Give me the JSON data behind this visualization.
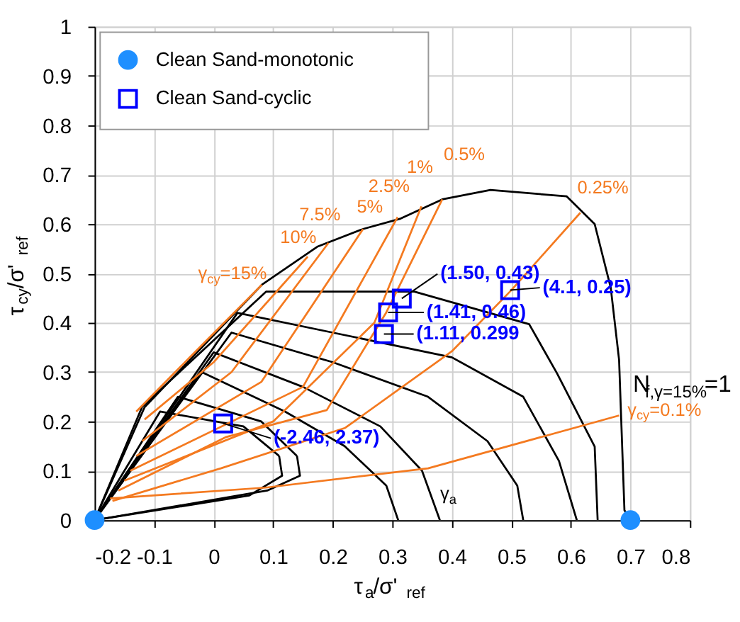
{
  "chart_data": {
    "type": "line",
    "xlabel": "τ$_{a}$/σ'$_{ref}$",
    "ylabel": "τ$_{cy}$/σ'$_{ref}$",
    "xlim": [
      -0.2,
      0.8
    ],
    "ylim": [
      0,
      1
    ],
    "xticks": [
      -0.2,
      -0.1,
      0,
      0.1,
      0.2,
      0.3,
      0.4,
      0.5,
      0.6,
      0.7,
      0.8
    ],
    "yticks": [
      0,
      0.1,
      0.2,
      0.3,
      0.4,
      0.5,
      0.6,
      0.7,
      0.8,
      0.9,
      1
    ],
    "grid": true,
    "legend": "top left",
    "series": [
      {
        "color": "#000000",
        "x": [
          -0.2,
          -0.116,
          0.081,
          0.174,
          0.251,
          0.314,
          0.384,
          0.465,
          0.593,
          0.64,
          0.667,
          0.681,
          0.69,
          0.7
        ],
        "values": [
          0,
          0.229,
          0.477,
          0.554,
          0.59,
          0.611,
          0.65,
          0.669,
          0.656,
          0.6,
          0.471,
          0.325,
          0.02,
          0
        ]
      },
      {
        "color": "#000000",
        "x": [
          -0.2,
          -0.12,
          0.088,
          0.337,
          0.53,
          0.577,
          0.64,
          0.645
        ],
        "values": [
          0,
          0.23,
          0.463,
          0.463,
          0.397,
          0.297,
          0.149,
          0
        ]
      },
      {
        "color": "#000000",
        "x": [
          -0.2,
          0.04,
          0.2,
          0.4,
          0.52,
          0.58,
          0.61
        ],
        "values": [
          0,
          0.42,
          0.38,
          0.33,
          0.25,
          0.12,
          0
        ]
      },
      {
        "color": "#000000",
        "x": [
          -0.2,
          0.03,
          0.2,
          0.36,
          0.46,
          0.51,
          0.52
        ],
        "values": [
          0,
          0.38,
          0.32,
          0.25,
          0.16,
          0.07,
          0
        ]
      },
      {
        "color": "#000000",
        "x": [
          -0.2,
          0.0,
          0.15,
          0.28,
          0.35,
          0.38
        ],
        "values": [
          0,
          0.34,
          0.27,
          0.19,
          0.1,
          0
        ]
      },
      {
        "color": "#000000",
        "x": [
          -0.2,
          -0.02,
          0.12,
          0.22,
          0.29,
          0.31
        ],
        "values": [
          0,
          0.3,
          0.22,
          0.15,
          0.07,
          0
        ]
      },
      {
        "color": "#000000",
        "x": [
          -0.2,
          -0.06,
          0.08,
          0.14
        ],
        "values": [
          0,
          0.25,
          0.2,
          0.13
        ]
      },
      {
        "color": "#000000",
        "x": [
          -0.2,
          0.09,
          0.145,
          0.14
        ],
        "values": [
          0,
          0.06,
          0.09,
          0.13
        ]
      },
      {
        "color": "#000000",
        "x": [
          -0.2,
          -0.09,
          0.05,
          0.11
        ],
        "values": [
          0,
          0.22,
          0.19,
          0.13
        ]
      },
      {
        "color": "#000000",
        "x": [
          -0.2,
          0.06,
          0.115,
          0.11
        ],
        "values": [
          0,
          0.05,
          0.09,
          0.13
        ]
      },
      {
        "color": "#f47a20",
        "x": [
          -0.13,
          -0.04,
          0.081
        ],
        "values": [
          0.22,
          0.33,
          0.477
        ]
      },
      {
        "color": "#f47a20",
        "x": [
          -0.116,
          0.0,
          0.158
        ],
        "values": [
          0.204,
          0.32,
          0.534
        ]
      },
      {
        "color": "#f47a20",
        "x": [
          -0.12,
          0.03,
          0.193
        ],
        "values": [
          0.16,
          0.3,
          0.562
        ]
      },
      {
        "color": "#f47a20",
        "x": [
          -0.13,
          0.08,
          0.251
        ],
        "values": [
          0.13,
          0.28,
          0.59
        ]
      },
      {
        "color": "#f47a20",
        "x": [
          -0.14,
          0.15,
          0.309
        ],
        "values": [
          0.1,
          0.27,
          0.614
        ]
      },
      {
        "color": "#f47a20",
        "x": [
          -0.15,
          0.1,
          0.27,
          0.349
        ],
        "values": [
          0.08,
          0.2,
          0.4,
          0.636
        ]
      },
      {
        "color": "#f47a20",
        "x": [
          -0.16,
          0.02,
          0.19,
          0.29,
          0.384
        ],
        "values": [
          0.06,
          0.168,
          0.223,
          0.421,
          0.65
        ]
      },
      {
        "color": "#f47a20",
        "x": [
          -0.17,
          0.012,
          0.221,
          0.4,
          0.5,
          0.616
        ],
        "values": [
          0.039,
          0.105,
          0.187,
          0.342,
          0.466,
          0.623
        ]
      },
      {
        "color": "#f47a20",
        "x": [
          -0.174,
          0.088,
          0.36,
          0.681
        ],
        "values": [
          0.044,
          0.066,
          0.105,
          0.212
        ]
      },
      {
        "type": "scatter",
        "name": "Clean Sand-monotonic",
        "color": "#1e8fff",
        "marker": "circle",
        "x": [
          -0.2,
          0.7
        ],
        "values": [
          0,
          0
        ]
      },
      {
        "type": "scatter",
        "name": "Clean Sand-cyclic",
        "color": "#0000ff",
        "marker": "square",
        "x": [
          0.316,
          0.293,
          0.286,
          0.498,
          0.016
        ],
        "values": [
          0.449,
          0.421,
          0.377,
          0.466,
          0.196
        ]
      }
    ],
    "annotations": [
      {
        "text": "(1.50, 0.43)",
        "x": 0.316,
        "y": 0.449
      },
      {
        "text": "(1.41, 0.46)",
        "x": 0.293,
        "y": 0.421
      },
      {
        "text": "(1.11, 0.299",
        "x": 0.286,
        "y": 0.377
      },
      {
        "text": "(4.1, 0.25)",
        "x": 0.498,
        "y": 0.466
      },
      {
        "text": "(-2.46, 2.37)",
        "x": 0.016,
        "y": 0.196
      },
      {
        "text": "γ$_{cy}$=15%",
        "x": 0.081,
        "y": 0.477
      },
      {
        "text": "10%",
        "x": 0.158,
        "y": 0.534
      },
      {
        "text": "7.5%",
        "x": 0.193,
        "y": 0.562
      },
      {
        "text": "5%",
        "x": 0.251,
        "y": 0.59
      },
      {
        "text": "2.5%",
        "x": 0.309,
        "y": 0.614
      },
      {
        "text": "1%",
        "x": 0.349,
        "y": 0.636
      },
      {
        "text": "0.5%",
        "x": 0.384,
        "y": 0.65
      },
      {
        "text": "0.25%",
        "x": 0.616,
        "y": 0.623
      },
      {
        "text": "γ$_{cy}$=0.1%",
        "x": 0.681,
        "y": 0.212
      },
      {
        "text": "N$_{f,γ=15%}$=1",
        "x": 0.681,
        "y": 0.325
      },
      {
        "text": "γ$_{a}$",
        "x": 0.371,
        "y": 0.03
      }
    ]
  }
}
